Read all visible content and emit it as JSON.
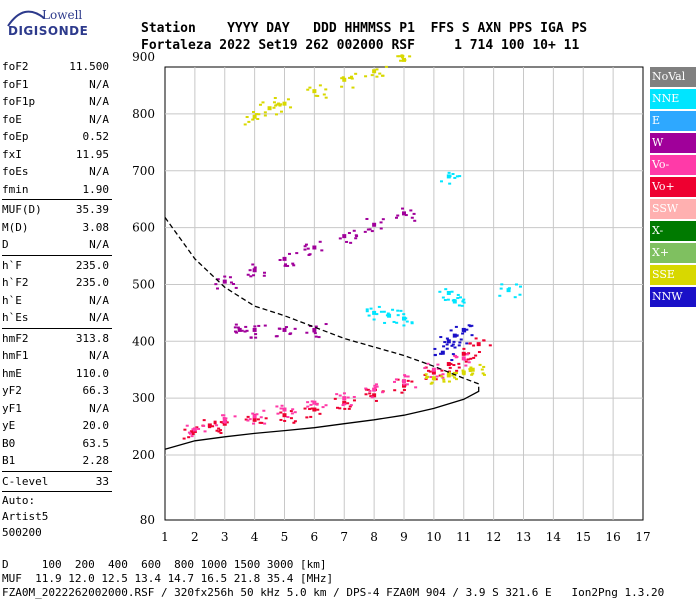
{
  "logo": {
    "top": "Lowell",
    "bottom": "DIGISONDE"
  },
  "header": {
    "line1": "Station    YYYY DAY   DDD HHMMSS P1  FFS S AXN PPS IGA PS",
    "line2": "Fortaleza 2022 Set19 262 002000 RSF     1 714 100 10+ 11"
  },
  "params": {
    "group1": [
      {
        "k": "foF2",
        "v": "11.500"
      },
      {
        "k": "foF1",
        "v": "N/A"
      },
      {
        "k": "foF1p",
        "v": "N/A"
      },
      {
        "k": "foE",
        "v": "N/A"
      },
      {
        "k": "foEp",
        "v": "0.52"
      },
      {
        "k": "fxI",
        "v": "11.95"
      },
      {
        "k": "foEs",
        "v": "N/A"
      },
      {
        "k": "fmin",
        "v": "1.90"
      }
    ],
    "group2": [
      {
        "k": "MUF(D)",
        "v": "35.39"
      },
      {
        "k": "M(D)",
        "v": "3.08"
      },
      {
        "k": "D",
        "v": "N/A"
      }
    ],
    "group3": [
      {
        "k": "h`F",
        "v": "235.0"
      },
      {
        "k": "h`F2",
        "v": "235.0"
      },
      {
        "k": "h`E",
        "v": "N/A"
      },
      {
        "k": "h`Es",
        "v": "N/A"
      }
    ],
    "group4": [
      {
        "k": "hmF2",
        "v": "313.8"
      },
      {
        "k": "hmF1",
        "v": "N/A"
      },
      {
        "k": "hmE",
        "v": "110.0"
      },
      {
        "k": "yF2",
        "v": "66.3"
      },
      {
        "k": "yF1",
        "v": "N/A"
      },
      {
        "k": "yE",
        "v": "20.0"
      },
      {
        "k": "B0",
        "v": "63.5"
      },
      {
        "k": "B1",
        "v": "2.28"
      }
    ],
    "group5": [
      {
        "k": "C-level",
        "v": "33"
      }
    ],
    "auto_lines": [
      "Auto:",
      "Artist5",
      "500200"
    ]
  },
  "legend": [
    {
      "label": "NoVal",
      "color": "#808080"
    },
    {
      "label": "NNE",
      "color": "#00e5ff"
    },
    {
      "label": "E",
      "color": "#2ea8ff"
    },
    {
      "label": "W",
      "color": "#a0009a"
    },
    {
      "label": "Vo-",
      "color": "#ff3aa8"
    },
    {
      "label": "Vo+",
      "color": "#ee0030"
    },
    {
      "label": "SSW",
      "color": "#ffb0b0"
    },
    {
      "label": "X-",
      "color": "#007a00"
    },
    {
      "label": "X+",
      "color": "#7fc060"
    },
    {
      "label": "SSE",
      "color": "#d8d800"
    },
    {
      "label": "NNW",
      "color": "#1a10c8"
    }
  ],
  "footer": {
    "line1": "D     100  200  400  600  800 1000 1500 3000 [km]",
    "line2": "MUF  11.9 12.0 12.5 13.4 14.7 16.5 21.8 35.4 [MHz]",
    "line3": "FZA0M_2022262002000.RSF / 320fx256h 50 kHz 5.0 km / DPS-4 FZA0M 904 / 3.9 S 321.6 E   Ion2Png 1.3.20"
  },
  "chart_data": {
    "type": "scatter",
    "title": "",
    "xlabel": "",
    "ylabel": "",
    "xlim": [
      1,
      17
    ],
    "ylim": [
      80,
      900
    ],
    "x_ticks": [
      1,
      2,
      3,
      4,
      5,
      6,
      7,
      8,
      9,
      10,
      11,
      12,
      13,
      14,
      15,
      16,
      17
    ],
    "y_ticks": [
      80,
      200,
      300,
      400,
      500,
      600,
      700,
      800,
      900
    ],
    "grid": true,
    "series": [
      {
        "name": "Vo+",
        "values": [
          [
            1.9,
            240
          ],
          [
            2.5,
            252
          ],
          [
            3,
            255
          ],
          [
            4,
            262
          ],
          [
            5,
            270
          ],
          [
            6,
            280
          ],
          [
            7,
            292
          ],
          [
            8,
            305
          ],
          [
            9,
            322
          ],
          [
            10,
            345
          ],
          [
            10.5,
            360
          ],
          [
            11,
            378
          ],
          [
            11.5,
            395
          ]
        ]
      },
      {
        "name": "Vo-",
        "values": [
          [
            2,
            245
          ],
          [
            3,
            260
          ],
          [
            4,
            268
          ],
          [
            5,
            280
          ],
          [
            6,
            292
          ],
          [
            7,
            300
          ],
          [
            8,
            315
          ],
          [
            9,
            330
          ],
          [
            10,
            350
          ],
          [
            11,
            370
          ]
        ]
      },
      {
        "name": "SSE",
        "values": [
          [
            10,
            335
          ],
          [
            10.5,
            340
          ],
          [
            11,
            345
          ],
          [
            11.3,
            350
          ],
          [
            4,
            795
          ],
          [
            4.5,
            810
          ],
          [
            5,
            818
          ],
          [
            6,
            840
          ],
          [
            7,
            860
          ],
          [
            8,
            875
          ],
          [
            9,
            895
          ]
        ]
      },
      {
        "name": "NNW",
        "values": [
          [
            10.3,
            380
          ],
          [
            10.5,
            400
          ],
          [
            10.7,
            410
          ],
          [
            11,
            420
          ]
        ]
      },
      {
        "name": "NNE",
        "values": [
          [
            8,
            450
          ],
          [
            8.5,
            445
          ],
          [
            9,
            440
          ],
          [
            10.5,
            485
          ],
          [
            10.7,
            470
          ],
          [
            10.5,
            690
          ],
          [
            12.5,
            490
          ]
        ]
      },
      {
        "name": "W",
        "values": [
          [
            3.5,
            420
          ],
          [
            4,
            420
          ],
          [
            5,
            420
          ],
          [
            6,
            420
          ],
          [
            3,
            505
          ],
          [
            4,
            525
          ],
          [
            5,
            545
          ],
          [
            6,
            565
          ],
          [
            7,
            585
          ],
          [
            8,
            605
          ],
          [
            9,
            625
          ]
        ]
      }
    ],
    "curves": [
      {
        "name": "",
        "style": "dashed",
        "values": [
          [
            1,
            618
          ],
          [
            2,
            545
          ],
          [
            3,
            495
          ],
          [
            4,
            462
          ],
          [
            5,
            445
          ],
          [
            6,
            425
          ],
          [
            7,
            405
          ],
          [
            8,
            390
          ],
          [
            9,
            375
          ],
          [
            10,
            356
          ],
          [
            11,
            335
          ],
          [
            11.5,
            325
          ]
        ]
      },
      {
        "name": "",
        "style": "solid",
        "values": [
          [
            1,
            210
          ],
          [
            2,
            225
          ],
          [
            3,
            232
          ],
          [
            4,
            238
          ],
          [
            5,
            243
          ],
          [
            6,
            248
          ],
          [
            7,
            255
          ],
          [
            8,
            262
          ],
          [
            9,
            270
          ],
          [
            10,
            282
          ],
          [
            11,
            298
          ],
          [
            11.5,
            312
          ],
          [
            11.5,
            320
          ]
        ]
      }
    ]
  }
}
